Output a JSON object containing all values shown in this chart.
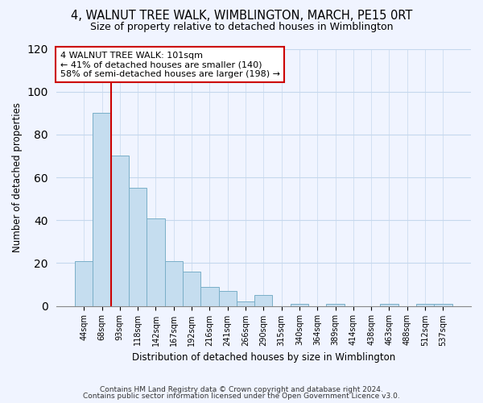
{
  "title1": "4, WALNUT TREE WALK, WIMBLINGTON, MARCH, PE15 0RT",
  "title2": "Size of property relative to detached houses in Wimblington",
  "xlabel": "Distribution of detached houses by size in Wimblington",
  "ylabel": "Number of detached properties",
  "bar_labels": [
    "44sqm",
    "68sqm",
    "93sqm",
    "118sqm",
    "142sqm",
    "167sqm",
    "192sqm",
    "216sqm",
    "241sqm",
    "266sqm",
    "290sqm",
    "315sqm",
    "340sqm",
    "364sqm",
    "389sqm",
    "414sqm",
    "438sqm",
    "463sqm",
    "488sqm",
    "512sqm",
    "537sqm"
  ],
  "bar_values": [
    21,
    90,
    70,
    55,
    41,
    21,
    16,
    9,
    7,
    2,
    5,
    0,
    1,
    0,
    1,
    0,
    0,
    1,
    0,
    1,
    1
  ],
  "bar_color": "#c5ddef",
  "bar_edge_color": "#7aafc8",
  "vline_color": "#cc0000",
  "annotation_title": "4 WALNUT TREE WALK: 101sqm",
  "annotation_line1": "← 41% of detached houses are smaller (140)",
  "annotation_line2": "58% of semi-detached houses are larger (198) →",
  "annotation_box_color": "white",
  "annotation_box_edge": "#cc0000",
  "ylim": [
    0,
    120
  ],
  "yticks": [
    0,
    20,
    40,
    60,
    80,
    100,
    120
  ],
  "footer1": "Contains HM Land Registry data © Crown copyright and database right 2024.",
  "footer2": "Contains public sector information licensed under the Open Government Licence v3.0.",
  "bg_color": "#f0f4ff"
}
